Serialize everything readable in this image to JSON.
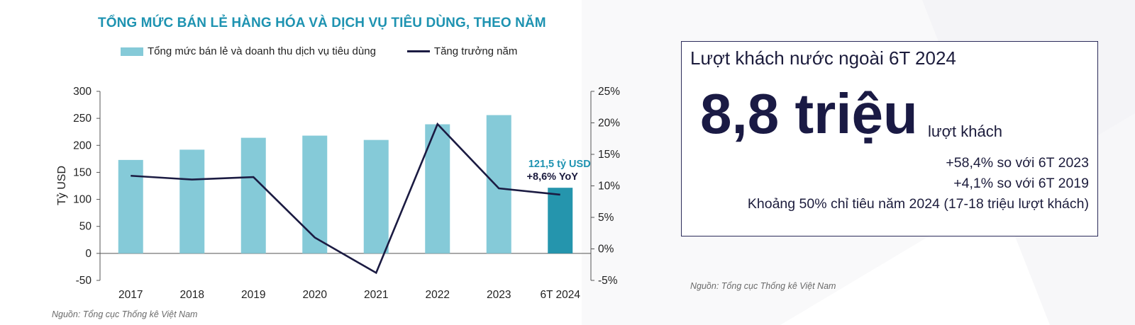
{
  "chart_data": {
    "type": "bar",
    "title": "TỔNG MỨC BÁN LẺ HÀNG HÓA VÀ DỊCH VỤ TIÊU DÙNG, THEO NĂM",
    "categories": [
      "2017",
      "2018",
      "2019",
      "2020",
      "2021",
      "2022",
      "2023",
      "6T 2024"
    ],
    "series": [
      {
        "name": "Tổng mức bán lẻ và doanh thu dịch vụ tiêu dùng",
        "type": "bar",
        "axis": "left",
        "values": [
          173,
          192,
          214,
          218,
          210,
          239,
          256,
          121.5
        ],
        "colors": [
          "#85cad8",
          "#85cad8",
          "#85cad8",
          "#85cad8",
          "#85cad8",
          "#85cad8",
          "#85cad8",
          "#2595ad"
        ]
      },
      {
        "name": "Tăng trưởng năm",
        "type": "line",
        "axis": "right",
        "unit": "%",
        "values": [
          11.6,
          11.0,
          11.4,
          1.8,
          -3.8,
          19.8,
          9.6,
          8.6
        ],
        "color": "#1b1b42"
      }
    ],
    "ylabel": "Tỷ USD",
    "ylim": [
      -50,
      300
    ],
    "yticks": [
      "300",
      "250",
      "200",
      "150",
      "100",
      "50",
      "0",
      "-50"
    ],
    "y2lim": [
      -5,
      25
    ],
    "y2ticks": [
      "25%",
      "20%",
      "15%",
      "10%",
      "5%",
      "0%",
      "-5%"
    ],
    "legend_position": "top",
    "grid": false,
    "annotations": [
      "121,5 tỷ USD",
      "+8,6% YoY"
    ]
  },
  "sources": {
    "left": "Nguồn: Tổng cục Thống kê Việt Nam",
    "right": "Nguồn: Tổng cục Thống kê Việt Nam"
  },
  "kpi": {
    "title": "Lượt khách nước ngoài 6T 2024",
    "value": "8,8 triệu",
    "unit": "lượt khách",
    "notes": [
      "+58,4% so với 6T 2023",
      "+4,1% so với 6T 2019",
      "Khoảng 50% chỉ tiêu năm 2024 (17-18 triệu lượt khách)"
    ]
  }
}
